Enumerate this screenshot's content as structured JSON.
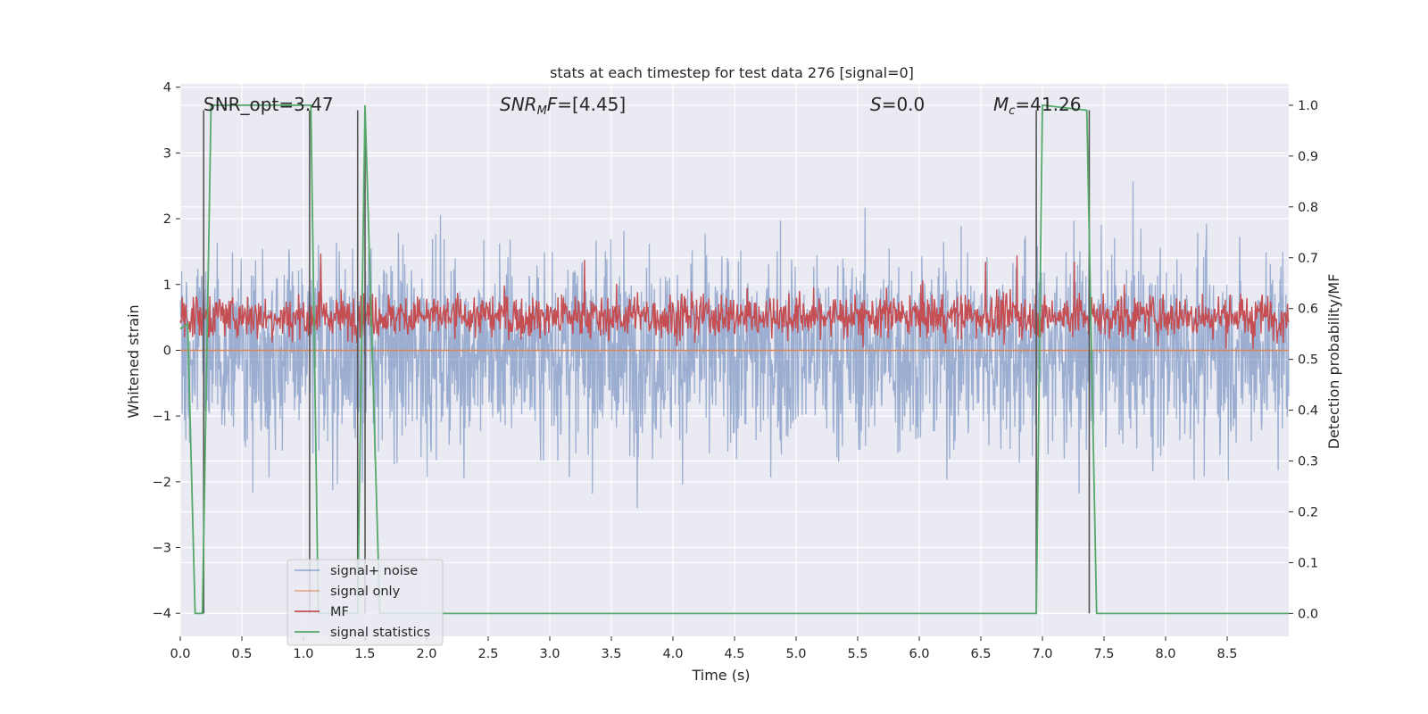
{
  "chart_data": {
    "type": "line",
    "title": "stats at each timestep for test data 276 [signal=0]",
    "xlabel": "Time (s)",
    "ylabel": "Whitened strain",
    "ylabel_right": "Detection probability/MF",
    "xlim": [
      0.0,
      9.0
    ],
    "ylim": [
      -4.35,
      4.05
    ],
    "ylim_right": [
      -0.045,
      1.042
    ],
    "xticks": [
      0.0,
      0.5,
      1.0,
      1.5,
      2.0,
      2.5,
      3.0,
      3.5,
      4.0,
      4.5,
      5.0,
      5.5,
      6.0,
      6.5,
      7.0,
      7.5,
      8.0,
      8.5
    ],
    "xtick_labels": [
      "0.0",
      "0.5",
      "1.0",
      "1.5",
      "2.0",
      "2.5",
      "3.0",
      "3.5",
      "4.0",
      "4.5",
      "5.0",
      "5.5",
      "6.0",
      "6.5",
      "7.0",
      "7.5",
      "8.0",
      "8.5"
    ],
    "yticks": [
      -4,
      -3,
      -2,
      -1,
      0,
      1,
      2,
      3,
      4
    ],
    "ytick_labels": [
      "−4",
      "−3",
      "−2",
      "−1",
      "0",
      "1",
      "2",
      "3",
      "4"
    ],
    "yticks_right": [
      0.0,
      0.1,
      0.2,
      0.3,
      0.4,
      0.5,
      0.6,
      0.7,
      0.8,
      0.9,
      1.0
    ],
    "ytick_labels_right": [
      "0.0",
      "0.1",
      "0.2",
      "0.3",
      "0.4",
      "0.5",
      "0.6",
      "0.7",
      "0.8",
      "0.9",
      "1.0"
    ],
    "annotations": [
      {
        "text": "SNR_opt=3.47",
        "x": 0.2,
        "y": 3.65
      },
      {
        "text": "SNR_MF=[4.45]",
        "math_main": "SNR",
        "math_sub": "M",
        "math_tail": "F",
        "rest": "=[4.45]",
        "x": 2.6,
        "y": 3.65
      },
      {
        "text": "S=0.0",
        "math_main": "S",
        "rest": "=0.0",
        "x": 5.6,
        "y": 3.65
      },
      {
        "text": "M_c=41.26",
        "math_main": "M",
        "math_sub": "c",
        "rest": "=41.26",
        "x": 6.6,
        "y": 3.65
      }
    ],
    "vlines_x": [
      0.19,
      1.05,
      1.44,
      1.5,
      6.95,
      7.38
    ],
    "vline_range": [
      -4.0,
      3.65
    ],
    "legend": {
      "location": "lower-left",
      "entries": [
        {
          "label": "signal+ noise",
          "color": "#4c72b0"
        },
        {
          "label": "signal only",
          "color": "#dd8452"
        },
        {
          "label": "MF",
          "color": "#c44e52"
        },
        {
          "label": "signal statistics",
          "color": "#55a868"
        }
      ]
    },
    "series": [
      {
        "name": "signal+ noise",
        "axis": "left",
        "color": "#4c72b0",
        "alpha": 0.5,
        "x_range": [
          0.0,
          9.0
        ],
        "approx_envelope": {
          "typical_abs_peak": 2.0,
          "max": 3.6,
          "min": -4.0
        }
      },
      {
        "name": "signal only",
        "axis": "left",
        "color": "#dd8452",
        "x": [
          0.0,
          9.0
        ],
        "y": [
          0.0,
          0.0
        ]
      },
      {
        "name": "MF",
        "axis": "right",
        "color": "#c44e52",
        "x_range": [
          0.0,
          9.0
        ],
        "approx_range": [
          0.52,
          0.65
        ],
        "approx_max": 0.72
      },
      {
        "name": "signal statistics",
        "axis": "right",
        "color": "#55a868",
        "x": [
          0.0,
          0.06,
          0.12,
          0.18,
          0.25,
          1.06,
          1.12,
          1.18,
          1.44,
          1.5,
          1.62,
          6.95,
          7.0,
          7.36,
          7.44,
          9.0
        ],
        "y": [
          0.56,
          0.57,
          0.0,
          0.0,
          1.0,
          1.0,
          0.0,
          0.0,
          0.0,
          1.0,
          0.0,
          0.0,
          1.0,
          0.99,
          0.0,
          0.0
        ]
      }
    ]
  }
}
